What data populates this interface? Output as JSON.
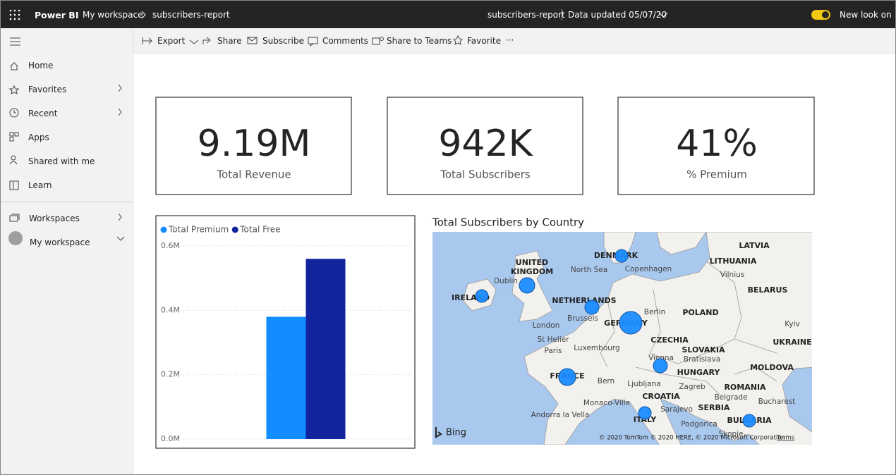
{
  "top_bar": {
    "app": "Power BI",
    "breadcrumb": [
      "My workspace",
      "subscribers-report"
    ],
    "report_name": "subscribers-report",
    "data_updated": "Data updated 05/07/20",
    "new_look": "New look on"
  },
  "nav": {
    "items": [
      "Home",
      "Favorites",
      "Recent",
      "Apps",
      "Shared with me",
      "Learn"
    ],
    "workspaces": [
      "Workspaces",
      "My workspace"
    ]
  },
  "toolbar": {
    "actions": [
      "Export",
      "Share",
      "Subscribe",
      "Comments",
      "Share to Teams",
      "Favorite"
    ],
    "more": "···"
  },
  "cards": [
    {
      "value": "9.19M",
      "label": "Total Revenue"
    },
    {
      "value": "942K",
      "label": "Total Subscribers"
    },
    {
      "value": "41%",
      "label": "% Premium"
    }
  ],
  "chart_data": {
    "type": "bar",
    "categories": [
      null
    ],
    "series": [
      {
        "name": "Total Premium",
        "color": "#118dff",
        "values": [
          380000
        ]
      },
      {
        "name": "Total Free",
        "color": "#12239e",
        "values": [
          560000
        ]
      }
    ],
    "ylim": [
      0,
      600000
    ],
    "yticks": [
      {
        "value": 0,
        "label": "0.0M"
      },
      {
        "value": 200000,
        "label": "0.2M"
      },
      {
        "value": 400000,
        "label": "0.4M"
      },
      {
        "value": 600000,
        "label": "0.6M"
      }
    ],
    "grid": true,
    "legend": "top-left"
  },
  "map": {
    "title": "Total Subscribers by Country",
    "labels": [
      "UNITED",
      "KINGDOM",
      "Dublin",
      "IRELAND",
      "North Sea",
      "DENMARK",
      "Copenhagen",
      "LATVIA",
      "LITHUANIA",
      "Vilnius",
      "BELARUS",
      "NETHERLANDS",
      "Brussels",
      "London",
      "Berlin",
      "POLAND",
      "GERMANY",
      "Kyiv",
      "UKRAINE",
      "St Helier",
      "Paris",
      "Luxembourg",
      "CZECHIA",
      "SLOVAKIA",
      "Bratislava",
      "Vienna",
      "HUNGARY",
      "MOLDOVA",
      "FRANCE",
      "Bern",
      "Ljubljana",
      "Zagreb",
      "ROMANIA",
      "Belgrade",
      "Bucharest",
      "CROATIA",
      "SERBIA",
      "Sarajevo",
      "Monaco-Ville",
      "Andorra la Vella",
      "ITALY",
      "Podgorica",
      "BULGARIA",
      "Skopje"
    ],
    "provider": "Bing",
    "attribution": "© 2020 TomTom © 2020 HERE, © 2020 Microsoft Corporation",
    "terms": "Terms"
  }
}
